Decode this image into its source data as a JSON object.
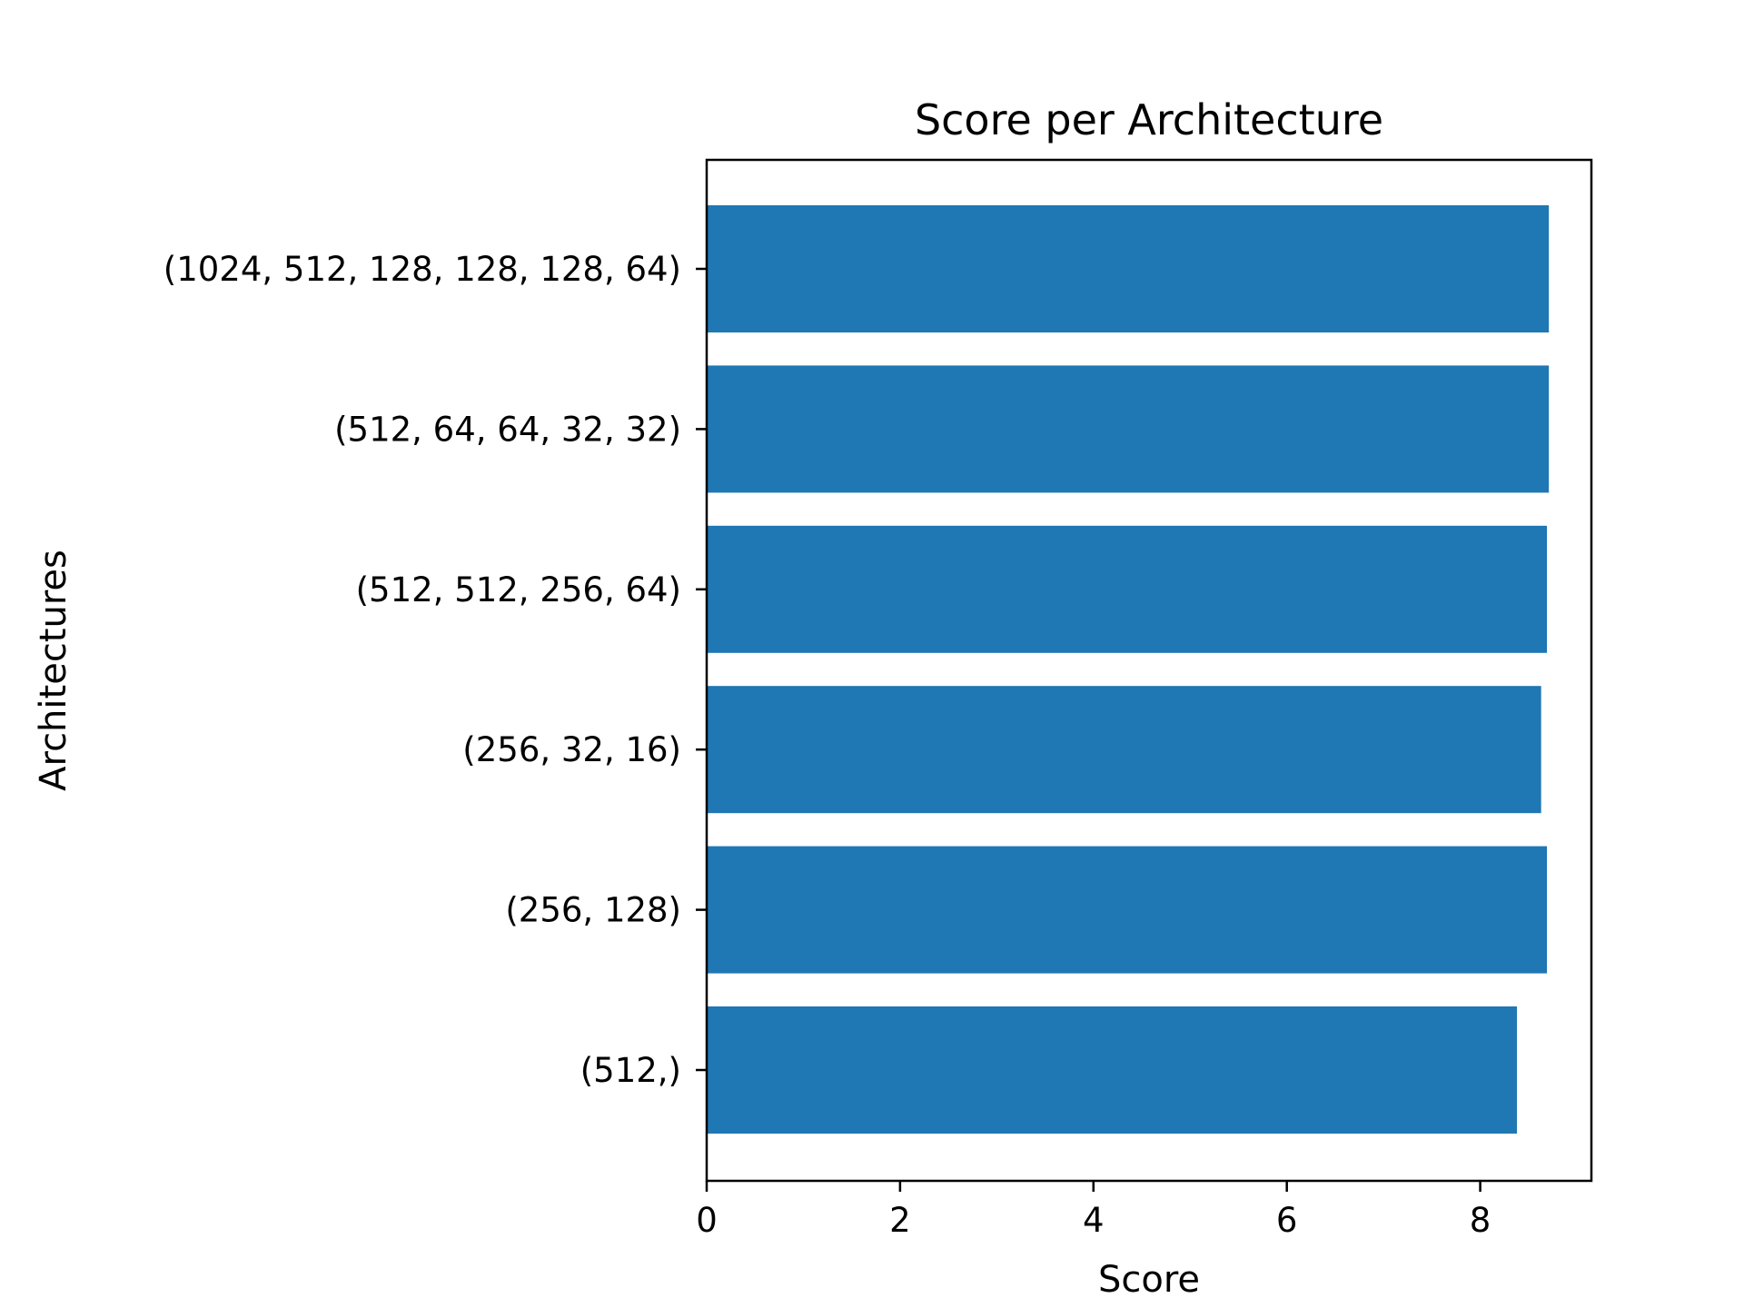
{
  "chart_data": {
    "type": "bar",
    "orientation": "horizontal",
    "title": "Score per Architecture",
    "xlabel": "Score",
    "ylabel": "Architectures",
    "categories": [
      "(1024, 512, 128, 128, 128, 64)",
      "(512, 64, 64, 32, 32)",
      "(512, 512, 256, 64)",
      "(256, 32, 16)",
      "(256, 128)",
      "(512,)"
    ],
    "values": [
      8.71,
      8.71,
      8.69,
      8.63,
      8.69,
      8.38
    ],
    "xlim": [
      0,
      9.15
    ],
    "xticks": [
      0,
      2,
      4,
      6,
      8
    ],
    "grid": false,
    "bar_color": "#1f77b4"
  }
}
